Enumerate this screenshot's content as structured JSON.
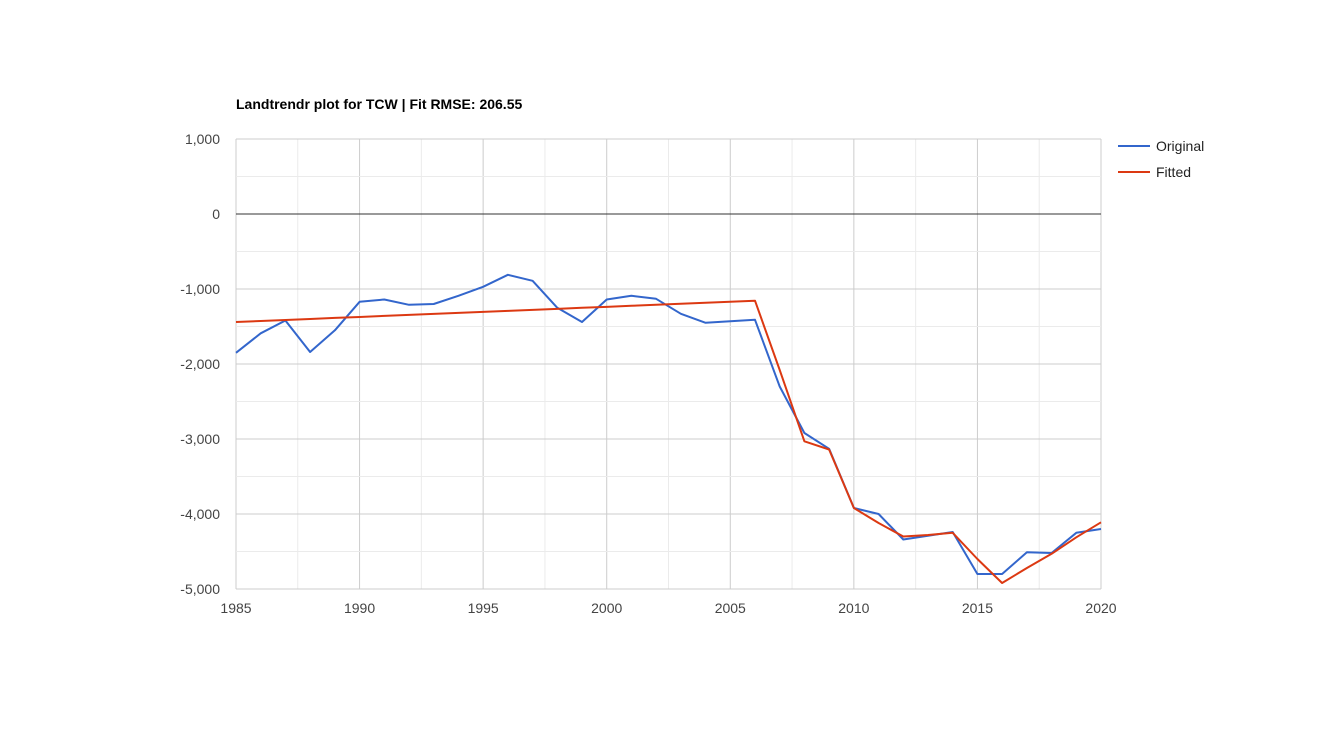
{
  "chart_data": {
    "type": "line",
    "title": "Landtrendr plot for TCW | Fit RMSE: 206.55",
    "xlabel": "",
    "ylabel": "",
    "xlim": [
      1985,
      2020
    ],
    "ylim": [
      -5000,
      1000
    ],
    "x_ticks": [
      "1985",
      "1990",
      "1995",
      "2000",
      "2005",
      "2010",
      "2015",
      "2020"
    ],
    "y_ticks": [
      "1,000",
      "0",
      "-1,000",
      "-2,000",
      "-3,000",
      "-4,000",
      "-5,000"
    ],
    "grid": true,
    "legend_position": "right",
    "x": [
      1985,
      1986,
      1987,
      1988,
      1989,
      1990,
      1991,
      1992,
      1993,
      1994,
      1995,
      1996,
      1997,
      1998,
      1999,
      2000,
      2001,
      2002,
      2003,
      2004,
      2005,
      2006,
      2007,
      2008,
      2009,
      2010,
      2011,
      2012,
      2013,
      2014,
      2015,
      2016,
      2017,
      2018,
      2019,
      2020
    ],
    "series": [
      {
        "name": "Original",
        "color": "#3366cc",
        "values": [
          -1850,
          -1590,
          -1420,
          -1840,
          -1550,
          -1170,
          -1140,
          -1210,
          -1200,
          -1090,
          -970,
          -810,
          -890,
          -1250,
          -1440,
          -1140,
          -1090,
          -1130,
          -1330,
          -1450,
          -1430,
          -1410,
          -2300,
          -2920,
          -3130,
          -3920,
          -4000,
          -4340,
          -4290,
          -4240,
          -4800,
          -4800,
          -4510,
          -4520,
          -4250,
          -4200
        ]
      },
      {
        "name": "Fitted",
        "color": "#dc3912",
        "values": [
          -1440,
          -1427,
          -1413,
          -1400,
          -1386,
          -1373,
          -1359,
          -1346,
          -1332,
          -1319,
          -1305,
          -1292,
          -1278,
          -1265,
          -1251,
          -1238,
          -1224,
          -1210,
          -1197,
          -1183,
          -1170,
          -1156,
          -2080,
          -3030,
          -3140,
          -3920,
          -4120,
          -4300,
          -4280,
          -4250,
          -4600,
          -4920,
          -4720,
          -4530,
          -4310,
          -4110
        ]
      }
    ]
  }
}
